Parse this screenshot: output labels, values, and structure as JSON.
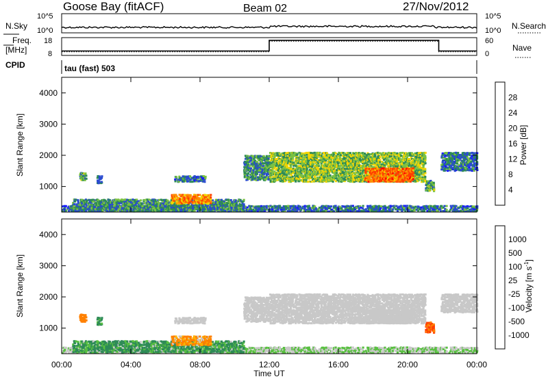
{
  "header": {
    "station": "Goose Bay (fitACF)",
    "beam": "Beam 02",
    "date": "27/Nov/2012"
  },
  "noise_panel": {
    "left_label": "N.Sky",
    "right_label": "N.Search",
    "left_ticks": [
      "10^5",
      "10^0"
    ],
    "right_ticks": [
      "10^5",
      "10^0"
    ]
  },
  "freq_panel": {
    "left_label_top": "Freq.",
    "left_label_bottom": "[MHz]",
    "cpid_label": "CPID",
    "right_label": "Nave",
    "left_ticks": [
      "18",
      "8"
    ],
    "right_ticks": [
      "60",
      "0"
    ]
  },
  "cpid_text": "tau (fast) 503",
  "axes": {
    "ylabel": "Slant Range [km]",
    "xlabel": "Time UT",
    "x_ticks": [
      "00:00",
      "04:00",
      "08:00",
      "12:00",
      "16:00",
      "20:00",
      "00:00"
    ],
    "y_ticks": [
      "1000",
      "2000",
      "3000",
      "4000"
    ]
  },
  "power_scale": {
    "label": "Power [dB]",
    "ticks": [
      "4",
      "8",
      "12",
      "16",
      "20",
      "24",
      "28"
    ],
    "colors": [
      "#1a1aff",
      "#2a4bd0",
      "#2e8b57",
      "#7ac143",
      "#f2d400",
      "#ff8c00",
      "#ff4000",
      "#ff0000"
    ]
  },
  "velocity_scale": {
    "label": "Velocity [m s",
    "label_sup": "-1",
    "label_end": "]",
    "ticks": [
      "1000",
      "500",
      "100",
      "25",
      "-25",
      "-100",
      "-500",
      "-1000"
    ],
    "colors": [
      "#2040c0",
      "#2a7a9a",
      "#2e8b57",
      "#58c040",
      "#c8c8c8",
      "#ffb000",
      "#ff8000",
      "#ff4000",
      "#ff0000"
    ]
  },
  "chart_data": {
    "type": "heatmap",
    "x_range_hours": [
      0,
      24
    ],
    "y_range_km": [
      180,
      4500
    ],
    "frequency_mhz": [
      {
        "t": 0,
        "v": 10.5
      },
      {
        "t": 12,
        "v": 10.5
      },
      {
        "t": 12,
        "v": 16.5
      },
      {
        "t": 21.8,
        "v": 16.5
      },
      {
        "t": 21.8,
        "v": 10.5
      },
      {
        "t": 24,
        "v": 10.5
      }
    ],
    "nave": [
      {
        "t": 0,
        "v": 12
      },
      {
        "t": 12,
        "v": 12
      },
      {
        "t": 12,
        "v": 48
      },
      {
        "t": 21.8,
        "v": 48
      },
      {
        "t": 21.8,
        "v": 12
      },
      {
        "t": 24,
        "v": 12
      }
    ],
    "echo_regions": [
      {
        "t0": 0.0,
        "t1": 24.0,
        "r0": 200,
        "r1": 400,
        "power_db": 8,
        "velocity": 25
      },
      {
        "t0": 0.6,
        "t1": 10.5,
        "r0": 220,
        "r1": 600,
        "power_db": 10,
        "velocity": 150
      },
      {
        "t0": 1.0,
        "t1": 1.4,
        "r0": 1200,
        "r1": 1450,
        "power_db": 12,
        "velocity": -300
      },
      {
        "t0": 2.0,
        "t1": 2.3,
        "r0": 1100,
        "r1": 1350,
        "power_db": 8,
        "velocity": 100
      },
      {
        "t0": 6.5,
        "t1": 8.3,
        "r0": 1150,
        "r1": 1350,
        "power_db": 8,
        "velocity": 0
      },
      {
        "t0": 6.3,
        "t1": 8.6,
        "r0": 450,
        "r1": 750,
        "power_db": 22,
        "velocity": -150
      },
      {
        "t0": 10.5,
        "t1": 12.0,
        "r0": 1200,
        "r1": 2000,
        "power_db": 10,
        "velocity": 0
      },
      {
        "t0": 12.0,
        "t1": 21.0,
        "r0": 1150,
        "r1": 2100,
        "power_db": 14,
        "velocity": 0
      },
      {
        "t0": 17.5,
        "t1": 20.3,
        "r0": 1150,
        "r1": 1600,
        "power_db": 24,
        "velocity": 0
      },
      {
        "t0": 21.0,
        "t1": 21.5,
        "r0": 850,
        "r1": 1200,
        "power_db": 12,
        "velocity": -500
      },
      {
        "t0": 21.9,
        "t1": 24.0,
        "r0": 1500,
        "r1": 2100,
        "power_db": 8,
        "velocity": 0
      }
    ]
  }
}
